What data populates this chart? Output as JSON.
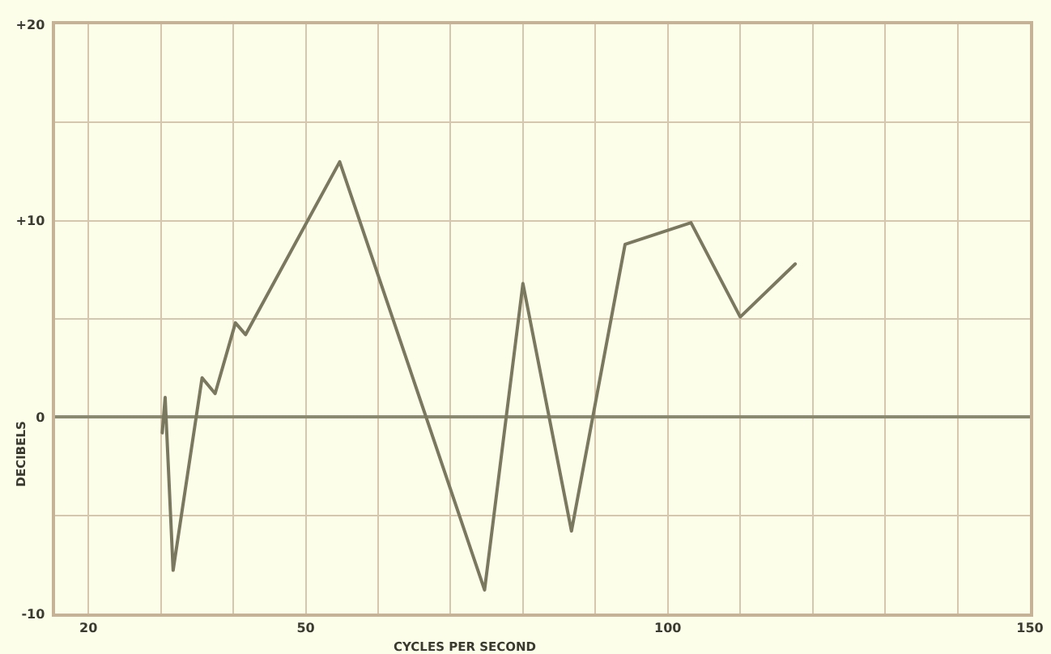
{
  "chart_data": {
    "type": "line",
    "xlabel": "CYCLES PER SECOND",
    "ylabel": "DECIBELS",
    "x": [
      30.2,
      30.6,
      31.7,
      35.7,
      37.5,
      40.3,
      41.7,
      54.7,
      74.7,
      80.0,
      86.7,
      94.1,
      103.2,
      110.0,
      117.6
    ],
    "values": [
      -0.8,
      1.0,
      -7.8,
      2.0,
      1.2,
      4.8,
      4.2,
      13.0,
      -8.8,
      6.8,
      -5.8,
      8.8,
      9.9,
      5.1,
      7.8
    ],
    "color": "#7b7860",
    "xlim": [
      15.4,
      150
    ],
    "xticks": [
      20,
      {
        "value": 30,
        "label": null
      },
      {
        "value": 40,
        "label": null
      },
      50,
      {
        "value": 60,
        "label": null
      },
      {
        "value": 70,
        "label": null
      },
      {
        "value": 80,
        "label": null
      },
      {
        "value": 90,
        "label": null
      },
      100,
      {
        "value": 110,
        "label": null
      },
      {
        "value": 120,
        "label": null
      },
      {
        "value": 130,
        "label": null
      },
      {
        "value": 140,
        "label": null
      },
      150
    ],
    "ylim": [
      -10,
      20
    ],
    "yticks": [
      -10,
      {
        "value": -5,
        "label": null
      },
      0,
      {
        "value": 5,
        "label": null
      },
      {
        "value": 10,
        "label": "+10"
      },
      {
        "value": 15,
        "label": null
      },
      {
        "value": 20,
        "label": "+20"
      }
    ],
    "grid": true,
    "marker": "none",
    "line_style": "solid"
  }
}
